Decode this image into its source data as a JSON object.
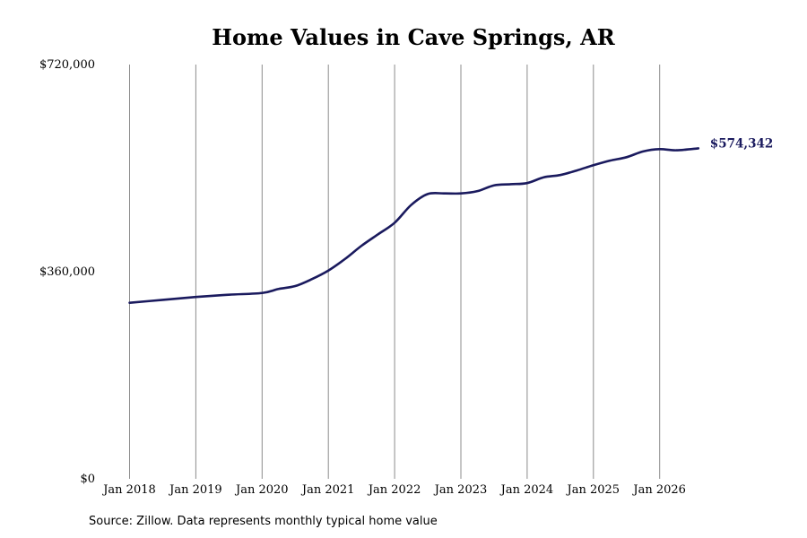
{
  "chart_data": {
    "type": "line",
    "title": "Home Values in Cave Springs, AR",
    "ylim": [
      0,
      720000
    ],
    "y_ticks": [
      0,
      360000,
      720000
    ],
    "y_tick_labels": [
      "$0",
      "$360,000",
      "$720,000"
    ],
    "x_range": [
      "2018-01",
      "2026-08"
    ],
    "x_ticks": [
      "2018-01",
      "2019-01",
      "2020-01",
      "2021-01",
      "2022-01",
      "2023-01",
      "2024-01",
      "2025-01",
      "2026-01"
    ],
    "x_tick_labels": [
      "Jan 2018",
      "Jan 2019",
      "Jan 2020",
      "Jan 2021",
      "Jan 2022",
      "Jan 2023",
      "Jan 2024",
      "Jan 2025",
      "Jan 2026"
    ],
    "grid": "vertical",
    "legend": "none",
    "end_label": "$574,342",
    "line_color": "#1a1a5e",
    "series": [
      {
        "x": [
          "2018-01",
          "2018-07",
          "2019-01",
          "2019-07",
          "2020-01",
          "2020-04",
          "2020-07",
          "2020-10",
          "2021-01",
          "2021-04",
          "2021-07",
          "2021-10",
          "2022-01",
          "2022-04",
          "2022-07",
          "2022-10",
          "2023-01",
          "2023-04",
          "2023-07",
          "2023-10",
          "2024-01",
          "2024-04",
          "2024-07",
          "2024-10",
          "2025-01",
          "2025-04",
          "2025-07",
          "2025-10",
          "2026-01",
          "2026-04",
          "2026-08"
        ],
        "values": [
          306000,
          311000,
          316000,
          320000,
          323000,
          330000,
          335000,
          347000,
          362000,
          382000,
          405000,
          425000,
          445000,
          476000,
          495000,
          496000,
          496000,
          500000,
          510000,
          512000,
          514000,
          524000,
          528000,
          536000,
          545000,
          553000,
          559000,
          569000,
          573000,
          571000,
          574342
        ]
      }
    ]
  },
  "source_note": "Source: Zillow. Data represents monthly typical home value"
}
